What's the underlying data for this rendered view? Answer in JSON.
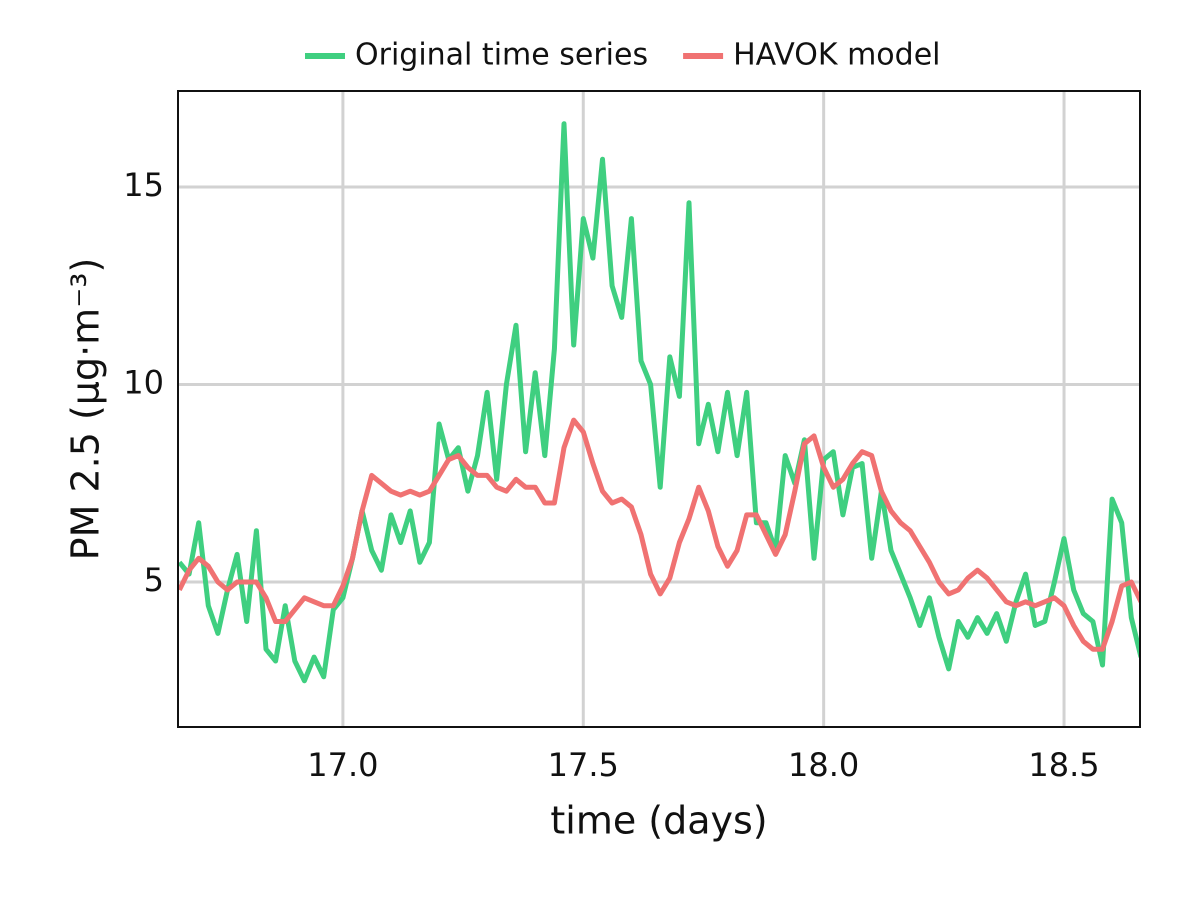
{
  "chart_data": {
    "type": "line",
    "xlabel": "time (days)",
    "ylabel": "PM 2.5 (μg·m⁻³)",
    "x": [
      16.66,
      16.68,
      16.7,
      16.72,
      16.74,
      16.76,
      16.78,
      16.8,
      16.82,
      16.84,
      16.86,
      16.88,
      16.9,
      16.92,
      16.94,
      16.96,
      16.98,
      17.0,
      17.02,
      17.04,
      17.06,
      17.08,
      17.1,
      17.12,
      17.14,
      17.16,
      17.18,
      17.2,
      17.22,
      17.24,
      17.26,
      17.28,
      17.3,
      17.32,
      17.34,
      17.36,
      17.38,
      17.4,
      17.42,
      17.44,
      17.46,
      17.48,
      17.5,
      17.52,
      17.54,
      17.56,
      17.58,
      17.6,
      17.62,
      17.64,
      17.66,
      17.68,
      17.7,
      17.72,
      17.74,
      17.76,
      17.78,
      17.8,
      17.82,
      17.84,
      17.86,
      17.88,
      17.9,
      17.92,
      17.94,
      17.96,
      17.98,
      18.0,
      18.02,
      18.04,
      18.06,
      18.08,
      18.1,
      18.12,
      18.14,
      18.16,
      18.18,
      18.2,
      18.22,
      18.24,
      18.26,
      18.28,
      18.3,
      18.32,
      18.34,
      18.36,
      18.38,
      18.4,
      18.42,
      18.44,
      18.46,
      18.48,
      18.5,
      18.52,
      18.54,
      18.56,
      18.58,
      18.6,
      18.62,
      18.64,
      18.66
    ],
    "series": [
      {
        "name": "Original time series",
        "color": "#3fcf80",
        "values": [
          5.5,
          5.2,
          6.5,
          4.4,
          3.7,
          4.8,
          5.7,
          4.0,
          6.3,
          3.3,
          3.0,
          4.4,
          3.0,
          2.5,
          3.1,
          2.6,
          4.3,
          4.6,
          5.6,
          6.8,
          5.8,
          5.3,
          6.7,
          6.0,
          6.8,
          5.5,
          6.0,
          9.0,
          8.1,
          8.4,
          7.3,
          8.2,
          9.8,
          7.6,
          10.0,
          11.5,
          8.3,
          10.3,
          8.2,
          10.9,
          16.6,
          11.0,
          14.2,
          13.2,
          15.7,
          12.5,
          11.7,
          14.2,
          10.6,
          10.0,
          7.4,
          10.7,
          9.7,
          14.6,
          8.5,
          9.5,
          8.3,
          9.8,
          8.2,
          9.8,
          6.5,
          6.5,
          5.8,
          8.2,
          7.5,
          8.6,
          5.6,
          8.1,
          8.3,
          6.7,
          7.9,
          8.0,
          5.6,
          7.3,
          5.8,
          5.2,
          4.6,
          3.9,
          4.6,
          3.6,
          2.8,
          4.0,
          3.6,
          4.1,
          3.7,
          4.2,
          3.5,
          4.5,
          5.2,
          3.9,
          4.0,
          5.0,
          6.1,
          4.8,
          4.2,
          4.0,
          2.9,
          7.1,
          6.5,
          4.1,
          3.1
        ]
      },
      {
        "name": "HAVOK model",
        "color": "#f07272",
        "values": [
          4.8,
          5.3,
          5.6,
          5.4,
          5.0,
          4.8,
          5.0,
          5.0,
          5.0,
          4.6,
          4.0,
          4.0,
          4.3,
          4.6,
          4.5,
          4.4,
          4.4,
          4.9,
          5.6,
          6.8,
          7.7,
          7.5,
          7.3,
          7.2,
          7.3,
          7.2,
          7.3,
          7.7,
          8.1,
          8.2,
          7.9,
          7.7,
          7.7,
          7.4,
          7.3,
          7.6,
          7.4,
          7.4,
          7.0,
          7.0,
          8.4,
          9.1,
          8.8,
          8.0,
          7.3,
          7.0,
          7.1,
          6.9,
          6.2,
          5.2,
          4.7,
          5.1,
          6.0,
          6.6,
          7.4,
          6.8,
          5.9,
          5.4,
          5.8,
          6.7,
          6.7,
          6.2,
          5.7,
          6.2,
          7.3,
          8.5,
          8.7,
          7.9,
          7.4,
          7.6,
          8.0,
          8.3,
          8.2,
          7.3,
          6.8,
          6.5,
          6.3,
          5.9,
          5.5,
          5.0,
          4.7,
          4.8,
          5.1,
          5.3,
          5.1,
          4.8,
          4.5,
          4.4,
          4.5,
          4.4,
          4.5,
          4.6,
          4.4,
          3.9,
          3.5,
          3.3,
          3.3,
          4.0,
          4.9,
          5.0,
          4.5
        ]
      }
    ],
    "xlim": [
      16.657,
      18.658
    ],
    "ylim": [
      1.33,
      17.43
    ],
    "xticks": [
      {
        "value": 17.0,
        "label": "17.0"
      },
      {
        "value": 17.5,
        "label": "17.5"
      },
      {
        "value": 18.0,
        "label": "18.0"
      },
      {
        "value": 18.5,
        "label": "18.5"
      }
    ],
    "yticks": [
      5,
      10,
      15
    ],
    "grid": true,
    "legend": "top"
  }
}
